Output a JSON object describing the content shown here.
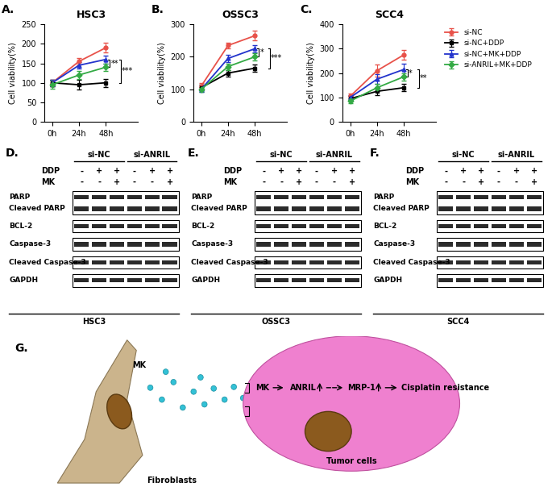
{
  "chart_data": [
    {
      "type": "line",
      "panel": "A.",
      "title": "HSC3",
      "y_label": "Cell viability(%)",
      "categories": [
        "0h",
        "24h",
        "48h"
      ],
      "ylim": [
        0,
        250
      ],
      "yticks": [
        0,
        50,
        100,
        150,
        200,
        250
      ],
      "series": [
        {
          "name": "si-NC",
          "color": "#e8524a",
          "marker": "circle",
          "values": [
            100,
            155,
            190
          ],
          "errors": [
            8,
            8,
            12
          ]
        },
        {
          "name": "si-NC+DDP",
          "color": "#000000",
          "marker": "square",
          "values": [
            100,
            95,
            100
          ],
          "errors": [
            8,
            12,
            10
          ]
        },
        {
          "name": "si-NC+MK+DDP",
          "color": "#2233cc",
          "marker": "triangle",
          "values": [
            100,
            145,
            160
          ],
          "errors": [
            8,
            8,
            10
          ]
        },
        {
          "name": "si-ANRIL+MK+DDP",
          "color": "#33aa44",
          "marker": "diamond",
          "values": [
            95,
            120,
            140
          ],
          "errors": [
            10,
            10,
            10
          ]
        }
      ],
      "significance": [
        {
          "series": [
            "si-NC+MK+DDP",
            "si-ANRIL+MK+DDP"
          ],
          "label": "**"
        },
        {
          "series": [
            "si-NC+MK+DDP",
            "si-NC+DDP"
          ],
          "label": "***"
        }
      ]
    },
    {
      "type": "line",
      "panel": "B.",
      "title": "OSSC3",
      "y_label": "Cell viability(%)",
      "categories": [
        "0h",
        "24h",
        "48h"
      ],
      "ylim": [
        0,
        300
      ],
      "yticks": [
        0,
        100,
        200,
        300
      ],
      "series": [
        {
          "name": "si-NC",
          "color": "#e8524a",
          "marker": "circle",
          "values": [
            110,
            235,
            265
          ],
          "errors": [
            8,
            8,
            15
          ]
        },
        {
          "name": "si-NC+DDP",
          "color": "#000000",
          "marker": "square",
          "values": [
            105,
            150,
            165
          ],
          "errors": [
            8,
            10,
            12
          ]
        },
        {
          "name": "si-NC+MK+DDP",
          "color": "#2233cc",
          "marker": "triangle",
          "values": [
            100,
            195,
            225
          ],
          "errors": [
            8,
            10,
            12
          ]
        },
        {
          "name": "si-ANRIL+MK+DDP",
          "color": "#33aa44",
          "marker": "diamond",
          "values": [
            100,
            170,
            200
          ],
          "errors": [
            8,
            10,
            12
          ]
        }
      ],
      "significance": [
        {
          "series": [
            "si-NC+MK+DDP",
            "si-ANRIL+MK+DDP"
          ],
          "label": "*"
        },
        {
          "series": [
            "si-NC+MK+DDP",
            "si-NC+DDP"
          ],
          "label": "***"
        }
      ]
    },
    {
      "type": "line",
      "panel": "C.",
      "title": "SCC4",
      "y_label": "Cell viability(%)",
      "categories": [
        "0h",
        "24h",
        "48h"
      ],
      "ylim": [
        0,
        400
      ],
      "yticks": [
        0,
        100,
        200,
        300,
        400
      ],
      "legend": "upper left",
      "series": [
        {
          "name": "si-NC",
          "color": "#e8524a",
          "marker": "circle",
          "values": [
            105,
            210,
            275
          ],
          "errors": [
            10,
            25,
            20
          ]
        },
        {
          "name": "si-NC+DDP",
          "color": "#000000",
          "marker": "square",
          "values": [
            95,
            125,
            140
          ],
          "errors": [
            10,
            15,
            15
          ]
        },
        {
          "name": "si-NC+MK+DDP",
          "color": "#2233cc",
          "marker": "triangle",
          "values": [
            100,
            175,
            215
          ],
          "errors": [
            10,
            20,
            25
          ]
        },
        {
          "name": "si-ANRIL+MK+DDP",
          "color": "#33aa44",
          "marker": "diamond",
          "values": [
            85,
            140,
            185
          ],
          "errors": [
            10,
            15,
            15
          ]
        }
      ],
      "significance": [
        {
          "series": [
            "si-NC+MK+DDP",
            "si-ANRIL+MK+DDP"
          ],
          "label": "*"
        },
        {
          "series": [
            "si-NC+MK+DDP",
            "si-NC+DDP"
          ],
          "label": "**"
        }
      ]
    }
  ],
  "blots": [
    {
      "panel": "D.",
      "cell_line": "HSC3",
      "groups": [
        "si-NC",
        "si-ANRIL"
      ],
      "treatments": [
        {
          "name": "DDP",
          "signs": [
            "-",
            "+",
            "+",
            "-",
            "+",
            "+"
          ]
        },
        {
          "name": "MK",
          "signs": [
            "-",
            "-",
            "+",
            "-",
            "-",
            "+"
          ]
        }
      ],
      "rows": [
        [
          "PARP",
          "Cleaved PARP"
        ],
        [
          "BCL-2"
        ],
        [
          "Caspase-3"
        ],
        [
          "Cleaved Caspase-3"
        ],
        [
          "GAPDH"
        ]
      ]
    },
    {
      "panel": "E.",
      "cell_line": "OSSC3",
      "groups": [
        "si-NC",
        "si-ANRIL"
      ],
      "treatments": [
        {
          "name": "DDP",
          "signs": [
            "-",
            "+",
            "+",
            "-",
            "+",
            "+"
          ]
        },
        {
          "name": "MK",
          "signs": [
            "-",
            "-",
            "+",
            "-",
            "-",
            "+"
          ]
        }
      ],
      "rows": [
        [
          "PARP",
          "Cleaved PARP"
        ],
        [
          "BCL-2"
        ],
        [
          "Caspase-3"
        ],
        [
          "Cleaved Caspase-3"
        ],
        [
          "GAPDH"
        ]
      ]
    },
    {
      "panel": "F.",
      "cell_line": "SCC4",
      "groups": [
        "si-NC",
        "si-ANRIL"
      ],
      "treatments": [
        {
          "name": "DDP",
          "signs": [
            "-",
            "+",
            "+",
            "-",
            "+",
            "+"
          ]
        },
        {
          "name": "MK",
          "signs": [
            "-",
            "-",
            "+",
            "-",
            "-",
            "+"
          ]
        }
      ],
      "rows": [
        [
          "PARP",
          "Cleaved PARP"
        ],
        [
          "BCL-2"
        ],
        [
          "Caspase-3"
        ],
        [
          "Cleaved Caspase-3"
        ],
        [
          "GAPDH"
        ]
      ]
    }
  ],
  "diagram": {
    "panel": "G.",
    "secreted": "MK",
    "ligand": "MK",
    "lncRNA": "ANRIL",
    "target": "MRP-1",
    "outcome": "Cisplatin resistance",
    "tumor_label": "Tumor cells",
    "fibroblast_label": "Fibroblasts"
  }
}
